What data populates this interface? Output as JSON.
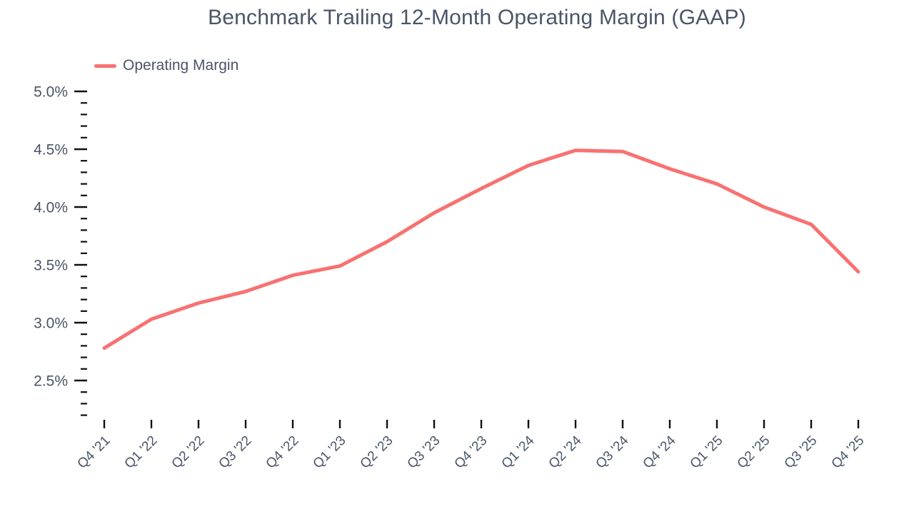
{
  "page": {
    "background": "#ffffff"
  },
  "chart_data": {
    "type": "line",
    "title": "Benchmark Trailing 12-Month Operating Margin (GAAP)",
    "legend": {
      "label": "Operating Margin",
      "position": "top-left"
    },
    "categories": [
      "Q4 '21",
      "Q1 '22",
      "Q2 '22",
      "Q3 '22",
      "Q4 '22",
      "Q1 '23",
      "Q2 '23",
      "Q3 '23",
      "Q4 '23",
      "Q1 '24",
      "Q2 '24",
      "Q3 '24",
      "Q4 '24",
      "Q1 '25",
      "Q2 '25",
      "Q3 '25",
      "Q4 '25"
    ],
    "series": [
      {
        "name": "Operating Margin",
        "color": "#f87171",
        "values": [
          2.78,
          3.03,
          3.17,
          3.27,
          3.41,
          3.49,
          3.7,
          3.95,
          4.16,
          4.36,
          4.49,
          4.48,
          4.33,
          4.2,
          4.0,
          3.85,
          3.44
        ]
      }
    ],
    "unit": "%",
    "xlabel": "",
    "ylabel": "",
    "y_axis": {
      "major_ticks": [
        5.0,
        4.5,
        4.0,
        3.5,
        3.0,
        2.5
      ],
      "tick_labels": [
        "5.0%",
        "4.5%",
        "4.0%",
        "3.5%",
        "3.0%",
        "2.5%"
      ],
      "minor_step": 0.1,
      "min_tick": 2.2,
      "max_tick": 5.0
    },
    "ylim": [
      2.2,
      5.0
    ],
    "grid": false,
    "colors": {
      "text": "#4a5568",
      "tick": "#0f0f0f",
      "line": "#f87171",
      "background": "#ffffff"
    }
  }
}
